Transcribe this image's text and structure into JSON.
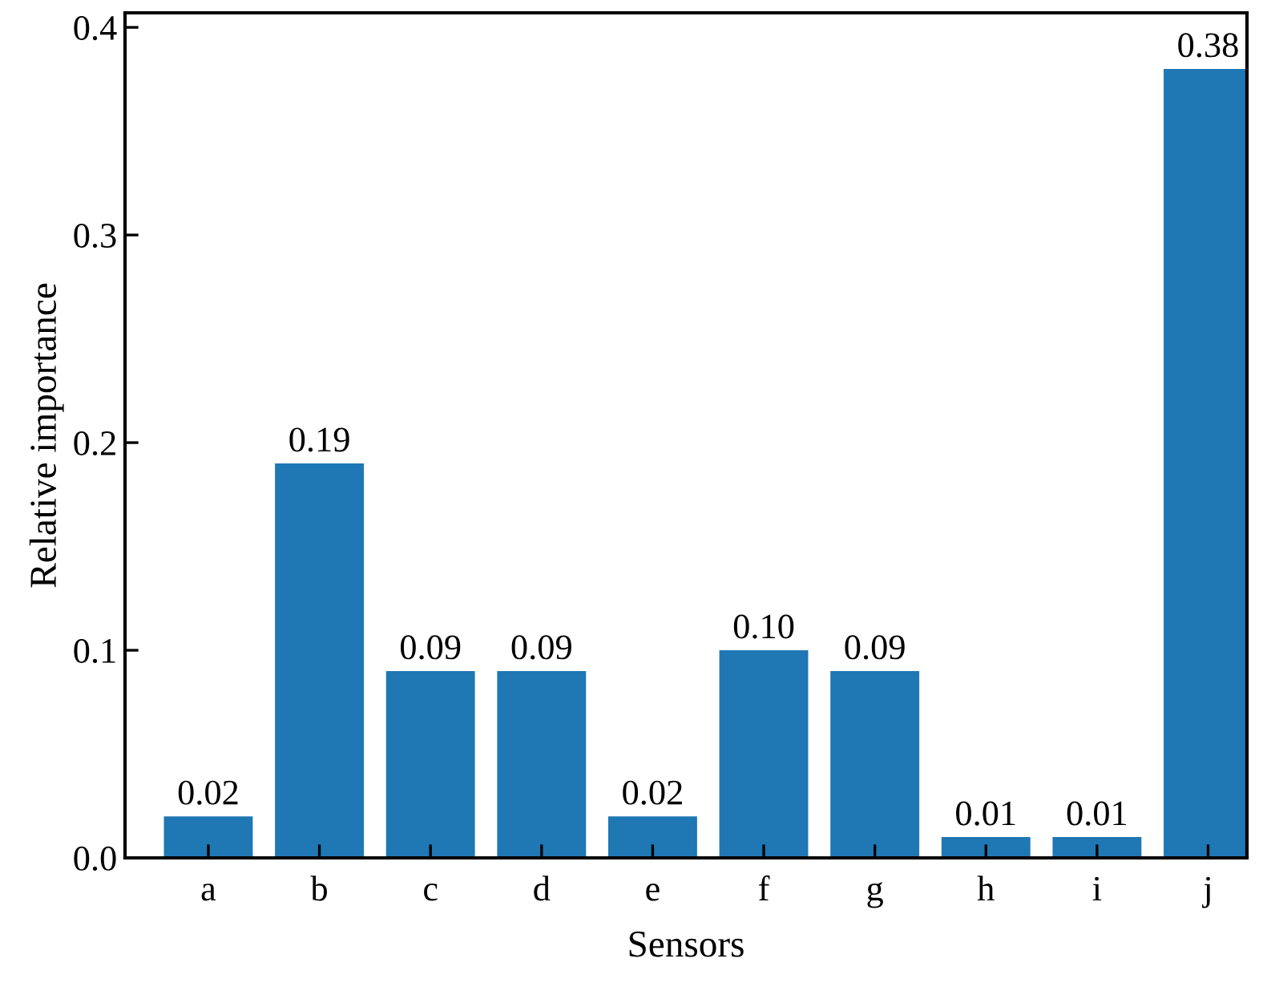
{
  "chart_data": {
    "type": "bar",
    "xlabel": "Sensors",
    "ylabel": "Relative importance",
    "categories": [
      "a",
      "b",
      "c",
      "d",
      "e",
      "f",
      "g",
      "h",
      "i",
      "j"
    ],
    "values": [
      0.02,
      0.19,
      0.09,
      0.09,
      0.02,
      0.1,
      0.09,
      0.01,
      0.01,
      0.38
    ],
    "value_labels": [
      "0.02",
      "0.19",
      "0.09",
      "0.09",
      "0.02",
      "0.10",
      "0.09",
      "0.01",
      "0.01",
      "0.38"
    ],
    "color": "#1f77b4",
    "ylim": [
      0,
      0.407
    ],
    "yticks": [
      {
        "value": 0,
        "label": "0.0"
      },
      0.1,
      0.2,
      0.3,
      0.4
    ],
    "grid": false,
    "legend": false
  }
}
